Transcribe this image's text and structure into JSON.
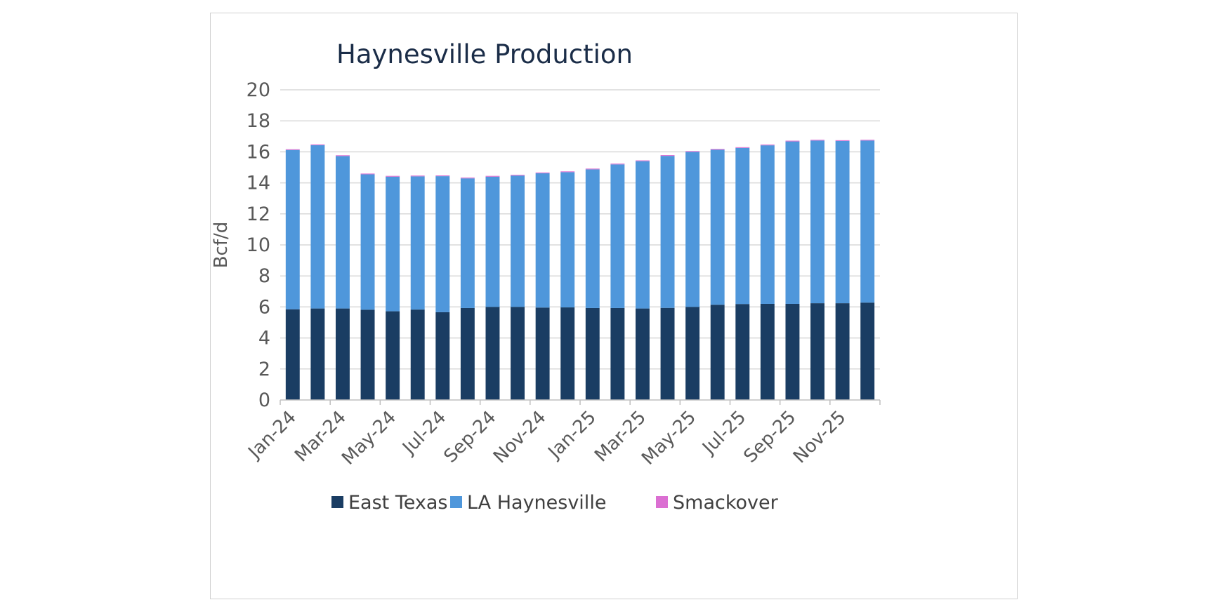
{
  "chart_data": {
    "type": "bar",
    "stacked": true,
    "title": "Haynesville Production",
    "xlabel": "",
    "ylabel": "Bcf/d",
    "ylim": [
      0,
      20
    ],
    "yticks": [
      0,
      2,
      4,
      6,
      8,
      10,
      12,
      14,
      16,
      18,
      20
    ],
    "grid": true,
    "legend_position": "bottom",
    "categories": [
      "Jan-24",
      "Feb-24",
      "Mar-24",
      "Apr-24",
      "May-24",
      "Jun-24",
      "Jul-24",
      "Aug-24",
      "Sep-24",
      "Oct-24",
      "Nov-24",
      "Dec-24",
      "Jan-25",
      "Feb-25",
      "Mar-25",
      "Apr-25",
      "May-25",
      "Jun-25",
      "Jul-25",
      "Aug-25",
      "Sep-25",
      "Oct-25",
      "Nov-25",
      "Dec-25"
    ],
    "tick_labels": [
      "Jan-24",
      "Mar-24",
      "May-24",
      "Jul-24",
      "Sep-24",
      "Nov-24",
      "Jan-25",
      "Mar-25",
      "May-25",
      "Jul-25",
      "Sep-25",
      "Nov-25"
    ],
    "series": [
      {
        "name": "East Texas",
        "color": "#1a3d63",
        "values": [
          5.85,
          5.9,
          5.9,
          5.82,
          5.72,
          5.83,
          5.66,
          5.93,
          6.0,
          6.0,
          5.96,
          5.97,
          5.93,
          5.93,
          5.9,
          5.94,
          6.0,
          6.14,
          6.19,
          6.2,
          6.2,
          6.24,
          6.24,
          6.28
        ]
      },
      {
        "name": "LA Haynesville",
        "color": "#4f97db",
        "values": [
          10.27,
          10.53,
          9.83,
          8.73,
          8.68,
          8.59,
          8.77,
          8.36,
          8.4,
          8.47,
          8.66,
          8.72,
          8.94,
          9.26,
          9.5,
          9.8,
          10.0,
          10.0,
          10.06,
          10.22,
          10.47,
          10.49,
          10.46,
          10.45
        ]
      },
      {
        "name": "Smackover",
        "color": "#db6fd2",
        "values": [
          0.05,
          0.05,
          0.05,
          0.05,
          0.05,
          0.05,
          0.05,
          0.05,
          0.05,
          0.05,
          0.05,
          0.05,
          0.05,
          0.05,
          0.05,
          0.05,
          0.05,
          0.05,
          0.05,
          0.05,
          0.05,
          0.05,
          0.05,
          0.05
        ]
      }
    ]
  },
  "colors": {
    "grid": "#d9d9d9",
    "axis": "#bfbfbf",
    "title": "#1b2d48",
    "tick_text": "#595959"
  }
}
